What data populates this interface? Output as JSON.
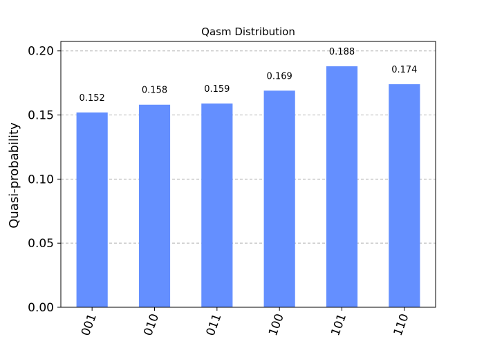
{
  "chart_data": {
    "type": "bar",
    "title": "Qasm Distribution",
    "xlabel": "",
    "ylabel": "Quasi-probability",
    "categories": [
      "001",
      "010",
      "011",
      "100",
      "101",
      "110"
    ],
    "values": [
      0.152,
      0.158,
      0.159,
      0.169,
      0.188,
      0.174
    ],
    "data_labels": [
      "0.152",
      "0.158",
      "0.159",
      "0.169",
      "0.188",
      "0.174"
    ],
    "ylim": [
      0,
      0.2074
    ],
    "yticks": [
      0.0,
      0.05,
      0.1,
      0.15,
      0.2
    ],
    "ytick_labels": [
      "0.00",
      "0.05",
      "0.10",
      "0.15",
      "0.20"
    ],
    "grid": "y-dashed",
    "bar_color": "#648fff",
    "legend": "none"
  }
}
